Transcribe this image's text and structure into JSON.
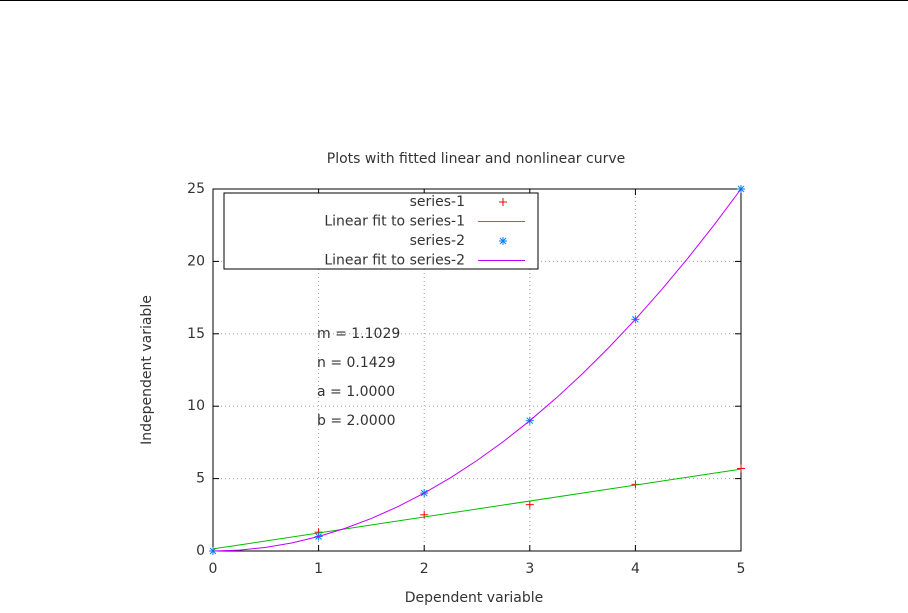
{
  "chart_data": {
    "type": "line",
    "title": "Plots with fitted linear and nonlinear curve",
    "xlabel": "Dependent variable",
    "ylabel": "Independent variable",
    "xlim": [
      0,
      5
    ],
    "xticks": [
      0,
      1,
      2,
      3,
      4,
      5
    ],
    "ylim": [
      0,
      25
    ],
    "yticks": [
      0,
      5,
      10,
      15,
      20,
      25
    ],
    "grid": true,
    "legend": "top left",
    "annotations": [
      "m = 1.1029",
      "n = 0.1429",
      "a = 1.0000",
      "b = 2.0000"
    ],
    "series": [
      {
        "name": "series-1",
        "color": "#ff0000",
        "marker": "plus",
        "x": [
          0,
          1,
          2,
          3,
          4,
          5
        ],
        "values": [
          0,
          1.3,
          2.5,
          3.2,
          4.6,
          5.7
        ]
      },
      {
        "name": "Linear fit to series-1",
        "color": "#00c000",
        "marker": "none",
        "x": [
          0,
          5
        ],
        "values": [
          0.1429,
          5.6574
        ]
      },
      {
        "name": "series-2",
        "color": "#0080ff",
        "marker": "star",
        "x": [
          0,
          1,
          2,
          3,
          4,
          5
        ],
        "values": [
          0,
          1,
          4,
          9,
          16,
          25
        ]
      },
      {
        "name": "Linear fit to series-2",
        "color": "#c000ff",
        "marker": "none",
        "x": [
          0,
          0.25,
          0.5,
          0.75,
          1,
          1.25,
          1.5,
          1.75,
          2,
          2.25,
          2.5,
          2.75,
          3,
          3.25,
          3.5,
          3.75,
          4,
          4.25,
          4.5,
          4.75,
          5
        ],
        "values": [
          0,
          0.0625,
          0.25,
          0.5625,
          1,
          1.5625,
          2.25,
          3.0625,
          4,
          5.0625,
          6.25,
          7.5625,
          9,
          10.5625,
          12.25,
          14.0625,
          16,
          18.0625,
          20.25,
          22.5625,
          25
        ]
      }
    ]
  }
}
